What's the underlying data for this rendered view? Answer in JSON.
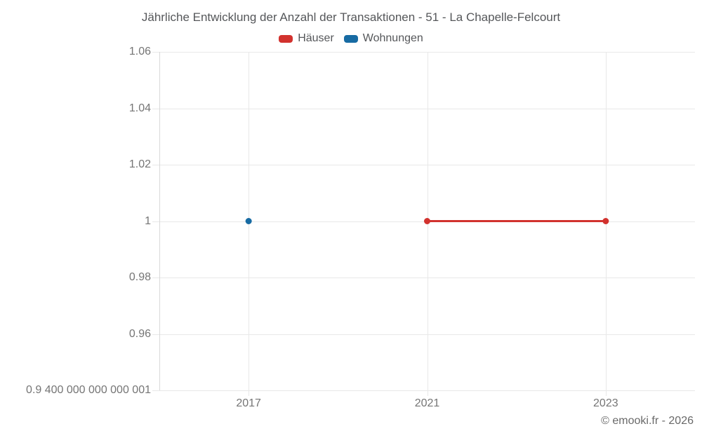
{
  "title": "Jährliche Entwicklung der Anzahl der Transaktionen - 51 - La Chapelle-Felcourt",
  "copyright": "© emooki.fr - 2026",
  "legend": {
    "items": [
      {
        "label": "Häuser",
        "color": "#d2322e"
      },
      {
        "label": "Wohnungen",
        "color": "#176ba3"
      }
    ]
  },
  "colors": {
    "haeuser_red": "#d2322e",
    "wohnungen_blue": "#176ba3",
    "grid": "#e8e8e8",
    "axis": "#d9d9d9",
    "title_text": "#55575a",
    "tick_text": "#757575"
  },
  "chart_data": {
    "type": "line",
    "title": "Jährliche Entwicklung der Anzahl der Transaktionen - 51 - La Chapelle-Felcourt",
    "categories": [
      "2017",
      "2021",
      "2023"
    ],
    "series": [
      {
        "name": "Häuser",
        "color": "#d2322e",
        "points": [
          [
            "2021",
            1
          ],
          [
            "2023",
            1
          ]
        ]
      },
      {
        "name": "Wohnungen",
        "color": "#176ba3",
        "points": [
          [
            "2017",
            1
          ]
        ]
      }
    ],
    "y_ticks": [
      {
        "value": 1.06,
        "label": "1.06"
      },
      {
        "value": 1.04,
        "label": "1.04"
      },
      {
        "value": 1.02,
        "label": "1.02"
      },
      {
        "value": 1,
        "label": "1"
      },
      {
        "value": 0.98,
        "label": "0.98"
      },
      {
        "value": 0.96,
        "label": "0.96"
      },
      {
        "value": 0.9400000000000001,
        "label": "0.9 400 000 000 000 001"
      }
    ],
    "ylim": [
      0.9400000000000001,
      1.06
    ],
    "xlabel": "",
    "ylabel": "",
    "grid": true,
    "legend_position": "top",
    "marker": "circle"
  }
}
